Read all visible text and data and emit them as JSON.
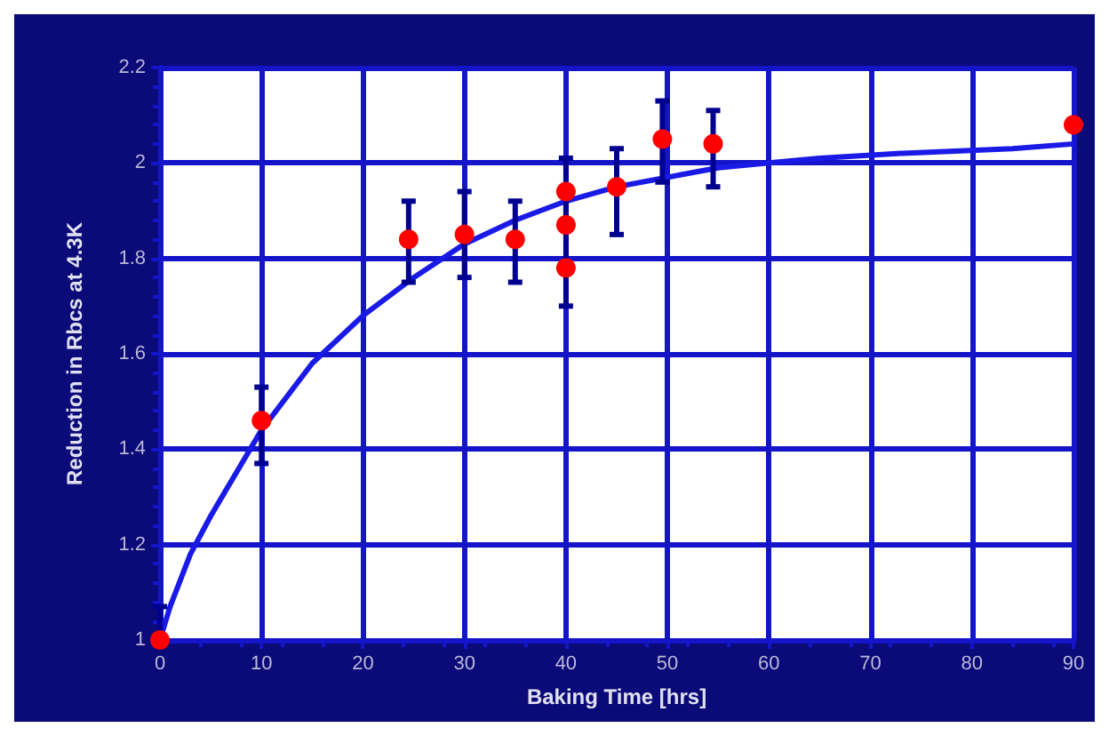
{
  "chart_data": {
    "type": "scatter",
    "xlabel": "Baking Time [hrs]",
    "ylabel": "Reduction in Rbcs at 4.3K",
    "xlim": [
      0,
      90
    ],
    "ylim": [
      1,
      2.2
    ],
    "xticks": [
      0,
      10,
      20,
      30,
      40,
      50,
      60,
      70,
      80,
      90
    ],
    "yticks": [
      1,
      1.2,
      1.4,
      1.6,
      1.8,
      2,
      2.2
    ],
    "grid": true,
    "legend": false,
    "series": [
      {
        "type": "line",
        "color": "#1a1ae6",
        "marker": "none",
        "line_style": "solid",
        "x": [
          0,
          1,
          3,
          5,
          10,
          15,
          20,
          25,
          30,
          35,
          40,
          45,
          50,
          55,
          60,
          65,
          73,
          84,
          90
        ],
        "values": [
          1.0,
          1.07,
          1.18,
          1.26,
          1.44,
          1.58,
          1.68,
          1.76,
          1.83,
          1.88,
          1.92,
          1.95,
          1.97,
          1.99,
          2.0,
          2.01,
          2.02,
          2.03,
          2.04
        ]
      },
      {
        "color": "#ff0000",
        "marker": "circle",
        "x": [
          0,
          10,
          24.5,
          30,
          35,
          40,
          40,
          40,
          45,
          49.5,
          54.5,
          90
        ],
        "values": [
          1.0,
          1.46,
          1.84,
          1.85,
          1.84,
          1.94,
          1.87,
          1.78,
          1.95,
          2.05,
          2.04,
          2.08
        ],
        "errors": [
          [
            1.0,
            1.07
          ],
          [
            1.37,
            1.53
          ],
          [
            1.75,
            1.92
          ],
          [
            1.76,
            1.94
          ],
          [
            1.75,
            1.92
          ],
          null,
          [
            1.7,
            2.01
          ],
          null,
          [
            1.85,
            2.03
          ],
          [
            1.96,
            2.13
          ],
          [
            1.95,
            2.11
          ],
          null
        ]
      }
    ]
  }
}
